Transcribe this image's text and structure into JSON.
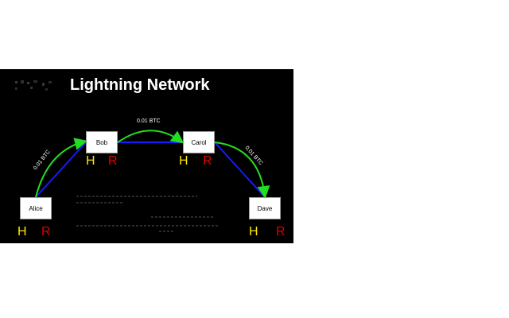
{
  "slide": {
    "title": "Lightning Network"
  },
  "nodes": {
    "alice": "Alice",
    "bob": "Bob",
    "carol": "Carol",
    "dave": "Dave"
  },
  "marks": {
    "h": "H",
    "r": "R"
  },
  "edges": {
    "alice_bob": "0.01 BTC",
    "bob_carol": "0.01 BTC",
    "carol_dave": "0.01 BTC"
  },
  "colors": {
    "background": "#000000",
    "payment_arrow": "#22dd22",
    "channel_line": "#1a1aff",
    "hash_letter": "#ffe600",
    "preimage_letter": "#e00000"
  }
}
